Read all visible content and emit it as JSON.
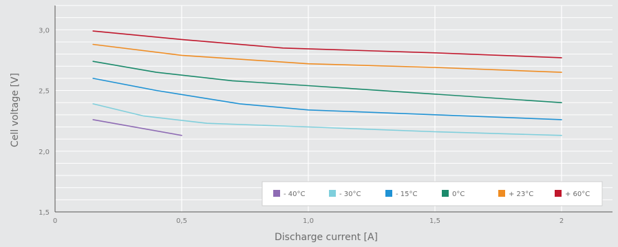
{
  "chart_data": {
    "type": "line",
    "xlabel": "Discharge current [A]",
    "ylabel": "Cell voltage [V]",
    "xlim": [
      0,
      2.2
    ],
    "ylim": [
      1.5,
      3.2
    ],
    "x_ticks": [
      {
        "value": 0,
        "label": "0"
      },
      {
        "value": 0.5,
        "label": "0,5"
      },
      {
        "value": 1.0,
        "label": "1,0"
      },
      {
        "value": 1.5,
        "label": "1,5"
      },
      {
        "value": 2.0,
        "label": "2"
      }
    ],
    "y_ticks": [
      {
        "value": 1.5,
        "label": "1,5"
      },
      {
        "value": 2.0,
        "label": "2,0"
      },
      {
        "value": 2.5,
        "label": "2,5"
      },
      {
        "value": 3.0,
        "label": "3,0"
      }
    ],
    "grid": true,
    "legend_position": "bottom-right",
    "series": [
      {
        "name": "- 40°C",
        "color": "#8e6bb4",
        "points": [
          [
            0.15,
            2.26
          ],
          [
            0.5,
            2.13
          ]
        ]
      },
      {
        "name": "- 30°C",
        "color": "#7fcfdc",
        "points": [
          [
            0.15,
            2.39
          ],
          [
            0.35,
            2.29
          ],
          [
            0.6,
            2.23
          ],
          [
            1.0,
            2.2
          ],
          [
            1.5,
            2.16
          ],
          [
            2.0,
            2.13
          ]
        ]
      },
      {
        "name": "- 15°C",
        "color": "#1f92d4",
        "points": [
          [
            0.15,
            2.6
          ],
          [
            0.4,
            2.5
          ],
          [
            0.73,
            2.39
          ],
          [
            1.0,
            2.34
          ],
          [
            1.5,
            2.3
          ],
          [
            2.0,
            2.26
          ]
        ]
      },
      {
        "name": "0°C",
        "color": "#1b8a6b",
        "points": [
          [
            0.15,
            2.74
          ],
          [
            0.4,
            2.65
          ],
          [
            0.7,
            2.58
          ],
          [
            1.0,
            2.54
          ],
          [
            1.5,
            2.47
          ],
          [
            2.0,
            2.4
          ]
        ]
      },
      {
        "name": "+ 23°C",
        "color": "#ef8c22",
        "points": [
          [
            0.15,
            2.88
          ],
          [
            0.5,
            2.79
          ],
          [
            1.0,
            2.72
          ],
          [
            1.5,
            2.69
          ],
          [
            2.0,
            2.65
          ]
        ]
      },
      {
        "name": "+ 60°C",
        "color": "#c0172c",
        "points": [
          [
            0.15,
            2.99
          ],
          [
            0.5,
            2.92
          ],
          [
            0.9,
            2.85
          ],
          [
            1.5,
            2.81
          ],
          [
            2.0,
            2.77
          ]
        ]
      }
    ]
  }
}
